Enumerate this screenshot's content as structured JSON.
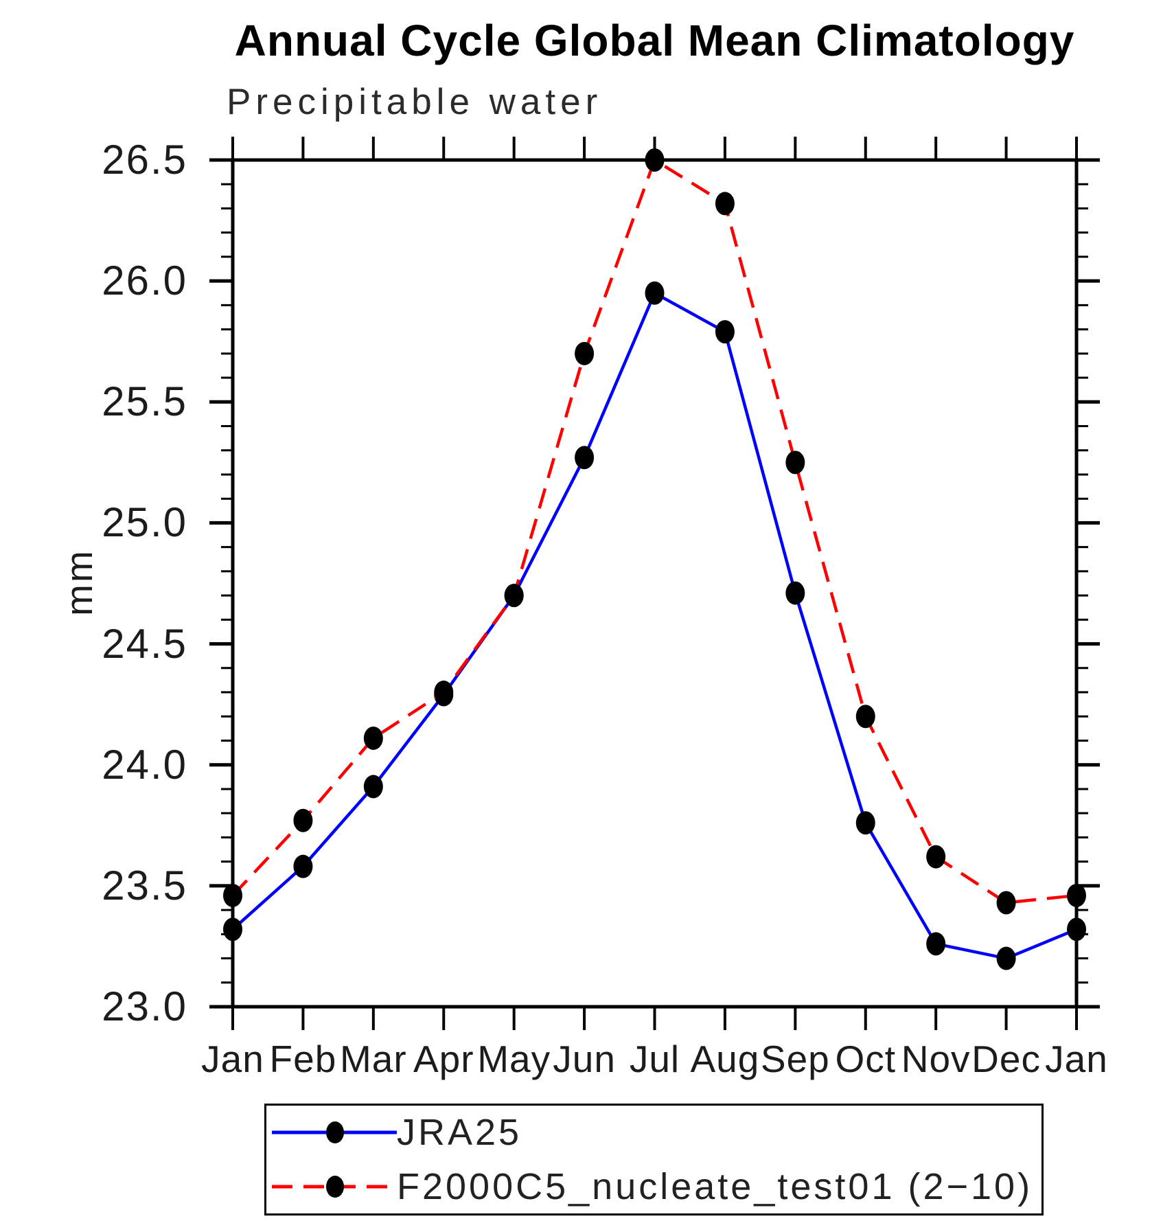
{
  "chart_data": {
    "type": "line",
    "title": "Annual Cycle Global Mean Climatology",
    "subtitle": "Precipitable water",
    "ylabel": "mm",
    "xlabel": "",
    "categories": [
      "Jan",
      "Feb",
      "Mar",
      "Apr",
      "May",
      "Jun",
      "Jul",
      "Aug",
      "Sep",
      "Oct",
      "Nov",
      "Dec",
      "Jan"
    ],
    "ylim": [
      23.0,
      26.5
    ],
    "ytick_labels": [
      "26.5",
      "26.0",
      "25.5",
      "25.0",
      "24.5",
      "24.0",
      "23.5",
      "23.0"
    ],
    "ytick_minor_step": 0.1,
    "grid": false,
    "legend_position": "bottom-left-box",
    "series": [
      {
        "name": "JRA25",
        "color": "#0000ff",
        "line_style": "solid",
        "marker": "filled-circle",
        "marker_color": "#000000",
        "values": [
          23.32,
          23.58,
          23.91,
          24.29,
          24.7,
          25.27,
          25.95,
          25.79,
          24.71,
          23.76,
          23.26,
          23.2,
          23.32
        ]
      },
      {
        "name": "F2000C5_nucleate_test01 (2−10)",
        "color": "#ff0000",
        "line_style": "dashed",
        "marker": "filled-circle",
        "marker_color": "#000000",
        "values": [
          23.46,
          23.77,
          24.11,
          24.3,
          24.7,
          25.7,
          26.5,
          26.32,
          25.25,
          24.2,
          23.62,
          23.43,
          23.46
        ]
      }
    ]
  }
}
